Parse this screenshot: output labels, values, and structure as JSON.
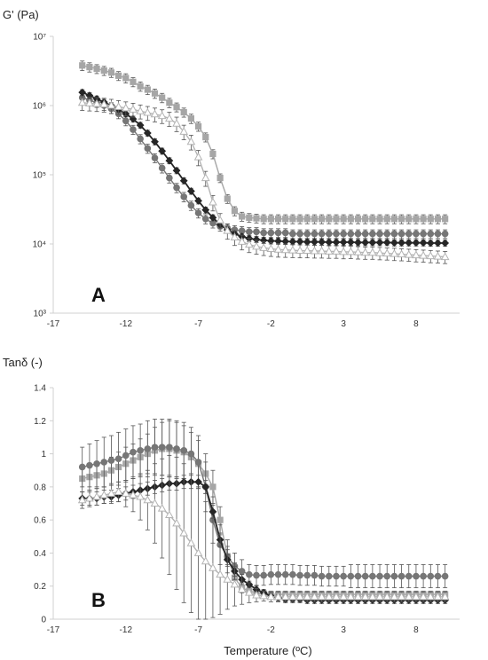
{
  "colors": {
    "square": "#a6a6a6",
    "circle": "#767676",
    "diamond": "#262626",
    "triangle": "#b4b4b4",
    "axis": "#d0d0d0",
    "error": "#555555"
  },
  "chart_data": [
    {
      "type": "line",
      "panel_label": "A",
      "ylabel": "G' (Pa)",
      "xlabel": "",
      "x_ticks": [
        "-17",
        "-12",
        "-7",
        "-2",
        "3",
        "8"
      ],
      "y_ticks": [
        "10³",
        "10⁴",
        "10⁵",
        "10⁶",
        "10⁷"
      ],
      "xlim": [
        -17,
        11
      ],
      "ylim": [
        1000,
        10000000
      ],
      "y_scale": "log",
      "grid": false,
      "legend": "none",
      "x": [
        -15,
        -14.5,
        -14,
        -13.5,
        -13,
        -12.5,
        -12,
        -11.5,
        -11,
        -10.5,
        -10,
        -9.5,
        -9,
        -8.5,
        -8,
        -7.5,
        -7,
        -6.5,
        -6,
        -5.5,
        -5,
        -4.5,
        -4,
        -3.5,
        -3,
        -2.5,
        -2,
        -1.5,
        -1,
        -0.5,
        0,
        0.5,
        1,
        1.5,
        2,
        2.5,
        3,
        3.5,
        4,
        4.5,
        5,
        5.5,
        6,
        6.5,
        7,
        7.5,
        8,
        8.5,
        9,
        9.5,
        10
      ],
      "series": [
        {
          "marker": "square",
          "values": [
            3800000,
            3600000,
            3400000,
            3200000,
            3000000,
            2700000,
            2500000,
            2200000,
            1900000,
            1700000,
            1500000,
            1300000,
            1100000,
            950000,
            800000,
            650000,
            500000,
            350000,
            200000,
            90000,
            45000,
            30000,
            25000,
            24000,
            23500,
            23000,
            23000,
            23000,
            23000,
            23000,
            23000,
            23000,
            23000,
            23000,
            23000,
            23000,
            23000,
            23000,
            23000,
            23000,
            23000,
            23000,
            23000,
            23000,
            23000,
            23000,
            23000,
            23000,
            23000,
            23000,
            23000
          ],
          "error": [
            600000,
            550000,
            500000,
            480000,
            450000,
            400000,
            380000,
            330000,
            290000,
            260000,
            230000,
            200000,
            170000,
            140000,
            120000,
            100000,
            75000,
            52000,
            30000,
            13000,
            6500,
            4500,
            3700,
            3500,
            3400,
            3400,
            3400,
            3400,
            3400,
            3400,
            3400,
            3400,
            3400,
            3400,
            3400,
            3400,
            3400,
            3400,
            3400,
            3400,
            3400,
            3400,
            3400,
            3400,
            3400,
            3400,
            3400,
            3400,
            3400,
            3400,
            3400
          ]
        },
        {
          "marker": "circle",
          "values": [
            1300000,
            1200000,
            1100000,
            1000000,
            900000,
            760000,
            600000,
            450000,
            330000,
            240000,
            175000,
            125000,
            90000,
            65000,
            48000,
            36000,
            28000,
            23000,
            20000,
            18000,
            17000,
            16000,
            15500,
            15000,
            15000,
            14500,
            14500,
            14500,
            14500,
            14000,
            14000,
            14000,
            14000,
            14000,
            14000,
            14000,
            14000,
            14000,
            14000,
            14000,
            14000,
            14000,
            14000,
            14000,
            14000,
            14000,
            14000,
            14000,
            14000,
            14000,
            14000
          ],
          "error": [
            200000,
            180000,
            160000,
            150000,
            135000,
            115000,
            90000,
            68000,
            50000,
            36000,
            26000,
            19000,
            14000,
            10000,
            7500,
            5500,
            4300,
            3500,
            3000,
            2700,
            2500,
            2400,
            2300,
            2200,
            2200,
            2100,
            2100,
            2100,
            2100,
            2000,
            2000,
            2000,
            2000,
            2000,
            2000,
            2000,
            2000,
            2000,
            2000,
            2000,
            2000,
            2000,
            2000,
            2000,
            2000,
            2000,
            2000,
            2000,
            2000,
            2000,
            2000
          ]
        },
        {
          "marker": "diamond",
          "values": [
            1550000,
            1400000,
            1250000,
            1120000,
            1000000,
            880000,
            760000,
            640000,
            520000,
            400000,
            300000,
            220000,
            160000,
            115000,
            82000,
            58000,
            42000,
            31000,
            24000,
            19000,
            16000,
            14000,
            12800,
            12000,
            11600,
            11300,
            11100,
            11000,
            10900,
            10800,
            10800,
            10700,
            10700,
            10700,
            10600,
            10600,
            10600,
            10600,
            10500,
            10500,
            10500,
            10500,
            10500,
            10400,
            10400,
            10400,
            10400,
            10400,
            10300,
            10300,
            10300
          ],
          "error": [
            150000,
            140000,
            125000,
            110000,
            100000,
            88000,
            76000,
            64000,
            52000,
            40000,
            30000,
            22000,
            16000,
            11500,
            8200,
            5800,
            4200,
            3100,
            2400,
            1900,
            1600,
            1400,
            1300,
            1200,
            1150,
            1130,
            1110,
            1100,
            1090,
            1080,
            1080,
            1070,
            1070,
            1070,
            1060,
            1060,
            1060,
            1060,
            1050,
            1050,
            1050,
            1050,
            1050,
            1040,
            1040,
            1040,
            1040,
            1040,
            1030,
            1030,
            1030
          ]
        },
        {
          "marker": "triangle",
          "values": [
            1100000,
            1080000,
            1060000,
            1040000,
            1000000,
            960000,
            920000,
            880000,
            830000,
            790000,
            750000,
            710000,
            650000,
            550000,
            420000,
            300000,
            180000,
            90000,
            40000,
            22000,
            15500,
            12500,
            10800,
            9800,
            9200,
            8800,
            8500,
            8300,
            8200,
            8100,
            8000,
            8000,
            7900,
            7900,
            7800,
            7800,
            7700,
            7700,
            7600,
            7500,
            7500,
            7400,
            7300,
            7200,
            7100,
            7000,
            6900,
            6800,
            6700,
            6600,
            6500
          ],
          "error": [
            250000,
            245000,
            240000,
            235000,
            230000,
            220000,
            210000,
            200000,
            190000,
            180000,
            170000,
            160000,
            150000,
            130000,
            100000,
            72000,
            45000,
            22000,
            10000,
            5500,
            3800,
            3000,
            2600,
            2300,
            2100,
            2000,
            1900,
            1850,
            1800,
            1750,
            1700,
            1700,
            1650,
            1650,
            1600,
            1600,
            1600,
            1550,
            1550,
            1500,
            1500,
            1500,
            1450,
            1450,
            1400,
            1400,
            1400,
            1350,
            1350,
            1300,
            1300
          ]
        }
      ]
    },
    {
      "type": "line",
      "panel_label": "B",
      "ylabel": "Tanδ (-)",
      "xlabel": "Temperature (ºC)",
      "x_ticks": [
        "-17",
        "-12",
        "-7",
        "-2",
        "3",
        "8"
      ],
      "y_ticks": [
        "0",
        "0.2",
        "0.4",
        "0.6",
        "0.8",
        "1",
        "1.2",
        "1.4"
      ],
      "xlim": [
        -17,
        11
      ],
      "ylim": [
        0,
        1.4
      ],
      "y_scale": "linear",
      "grid": false,
      "legend": "none",
      "x": [
        -15,
        -14.5,
        -14,
        -13.5,
        -13,
        -12.5,
        -12,
        -11.5,
        -11,
        -10.5,
        -10,
        -9.5,
        -9,
        -8.5,
        -8,
        -7.5,
        -7,
        -6.5,
        -6,
        -5.5,
        -5,
        -4.5,
        -4,
        -3.5,
        -3,
        -2.5,
        -2,
        -1.5,
        -1,
        -0.5,
        0,
        0.5,
        1,
        1.5,
        2,
        2.5,
        3,
        3.5,
        4,
        4.5,
        5,
        5.5,
        6,
        6.5,
        7,
        7.5,
        8,
        8.5,
        9,
        9.5,
        10
      ],
      "series": [
        {
          "marker": "square",
          "values": [
            0.85,
            0.86,
            0.87,
            0.88,
            0.9,
            0.92,
            0.94,
            0.96,
            0.98,
            1.0,
            1.02,
            1.03,
            1.03,
            1.02,
            1.01,
            0.98,
            0.94,
            0.88,
            0.8,
            0.6,
            0.38,
            0.25,
            0.19,
            0.17,
            0.16,
            0.155,
            0.15,
            0.15,
            0.15,
            0.15,
            0.15,
            0.15,
            0.15,
            0.15,
            0.15,
            0.15,
            0.15,
            0.15,
            0.15,
            0.15,
            0.15,
            0.15,
            0.15,
            0.15,
            0.15,
            0.15,
            0.15,
            0.15,
            0.15,
            0.15,
            0.15
          ],
          "error": [
            0.08,
            0.08,
            0.08,
            0.08,
            0.08,
            0.09,
            0.1,
            0.1,
            0.11,
            0.12,
            0.14,
            0.16,
            0.17,
            0.17,
            0.16,
            0.15,
            0.14,
            0.12,
            0.1,
            0.08,
            0.06,
            0.04,
            0.03,
            0.025,
            0.02,
            0.02,
            0.02,
            0.02,
            0.02,
            0.02,
            0.02,
            0.02,
            0.02,
            0.02,
            0.02,
            0.02,
            0.02,
            0.02,
            0.02,
            0.02,
            0.02,
            0.02,
            0.02,
            0.02,
            0.02,
            0.02,
            0.02,
            0.02,
            0.02,
            0.02,
            0.02
          ]
        },
        {
          "marker": "circle",
          "values": [
            0.92,
            0.93,
            0.94,
            0.95,
            0.96,
            0.97,
            0.99,
            1.01,
            1.02,
            1.03,
            1.04,
            1.04,
            1.04,
            1.03,
            1.02,
            1.0,
            0.95,
            0.8,
            0.6,
            0.45,
            0.38,
            0.32,
            0.29,
            0.27,
            0.265,
            0.265,
            0.27,
            0.27,
            0.27,
            0.27,
            0.265,
            0.265,
            0.265,
            0.26,
            0.26,
            0.26,
            0.26,
            0.26,
            0.26,
            0.26,
            0.26,
            0.26,
            0.26,
            0.26,
            0.26,
            0.26,
            0.26,
            0.26,
            0.26,
            0.26,
            0.26
          ],
          "error": [
            0.12,
            0.13,
            0.14,
            0.15,
            0.15,
            0.16,
            0.16,
            0.16,
            0.16,
            0.17,
            0.17,
            0.17,
            0.17,
            0.17,
            0.17,
            0.16,
            0.16,
            0.15,
            0.14,
            0.12,
            0.1,
            0.08,
            0.07,
            0.06,
            0.06,
            0.06,
            0.06,
            0.06,
            0.06,
            0.06,
            0.06,
            0.06,
            0.06,
            0.06,
            0.06,
            0.06,
            0.06,
            0.07,
            0.07,
            0.07,
            0.07,
            0.07,
            0.07,
            0.07,
            0.07,
            0.07,
            0.07,
            0.07,
            0.07,
            0.07,
            0.07
          ]
        },
        {
          "marker": "diamond",
          "values": [
            0.73,
            0.73,
            0.73,
            0.74,
            0.74,
            0.75,
            0.76,
            0.77,
            0.78,
            0.79,
            0.8,
            0.81,
            0.82,
            0.82,
            0.83,
            0.83,
            0.83,
            0.8,
            0.65,
            0.48,
            0.36,
            0.29,
            0.24,
            0.21,
            0.18,
            0.16,
            0.14,
            0.13,
            0.12,
            0.12,
            0.12,
            0.115,
            0.115,
            0.115,
            0.115,
            0.115,
            0.115,
            0.115,
            0.115,
            0.115,
            0.115,
            0.115,
            0.115,
            0.115,
            0.115,
            0.115,
            0.115,
            0.115,
            0.115,
            0.115,
            0.115
          ],
          "error": [
            0.04,
            0.04,
            0.04,
            0.04,
            0.04,
            0.04,
            0.04,
            0.04,
            0.04,
            0.04,
            0.04,
            0.04,
            0.04,
            0.04,
            0.04,
            0.04,
            0.04,
            0.04,
            0.04,
            0.04,
            0.03,
            0.03,
            0.03,
            0.02,
            0.02,
            0.02,
            0.02,
            0.02,
            0.02,
            0.02,
            0.02,
            0.02,
            0.02,
            0.02,
            0.02,
            0.02,
            0.02,
            0.02,
            0.02,
            0.02,
            0.02,
            0.02,
            0.02,
            0.02,
            0.02,
            0.02,
            0.02,
            0.02,
            0.02,
            0.02,
            0.02
          ]
        },
        {
          "marker": "triangle",
          "values": [
            0.72,
            0.73,
            0.74,
            0.75,
            0.76,
            0.77,
            0.76,
            0.75,
            0.74,
            0.72,
            0.7,
            0.67,
            0.63,
            0.58,
            0.52,
            0.46,
            0.4,
            0.35,
            0.31,
            0.27,
            0.24,
            0.21,
            0.18,
            0.16,
            0.145,
            0.14,
            0.135,
            0.135,
            0.135,
            0.135,
            0.135,
            0.135,
            0.135,
            0.135,
            0.135,
            0.135,
            0.135,
            0.135,
            0.135,
            0.135,
            0.135,
            0.135,
            0.135,
            0.135,
            0.135,
            0.135,
            0.135,
            0.135,
            0.135,
            0.135,
            0.135
          ],
          "error": [
            0.05,
            0.05,
            0.05,
            0.05,
            0.05,
            0.06,
            0.08,
            0.1,
            0.14,
            0.18,
            0.24,
            0.3,
            0.36,
            0.4,
            0.42,
            0.42,
            0.4,
            0.36,
            0.3,
            0.24,
            0.18,
            0.13,
            0.09,
            0.06,
            0.04,
            0.03,
            0.03,
            0.03,
            0.03,
            0.03,
            0.03,
            0.03,
            0.03,
            0.03,
            0.03,
            0.03,
            0.03,
            0.03,
            0.03,
            0.03,
            0.03,
            0.03,
            0.03,
            0.03,
            0.03,
            0.03,
            0.03,
            0.03,
            0.03,
            0.03,
            0.03
          ]
        }
      ]
    }
  ]
}
